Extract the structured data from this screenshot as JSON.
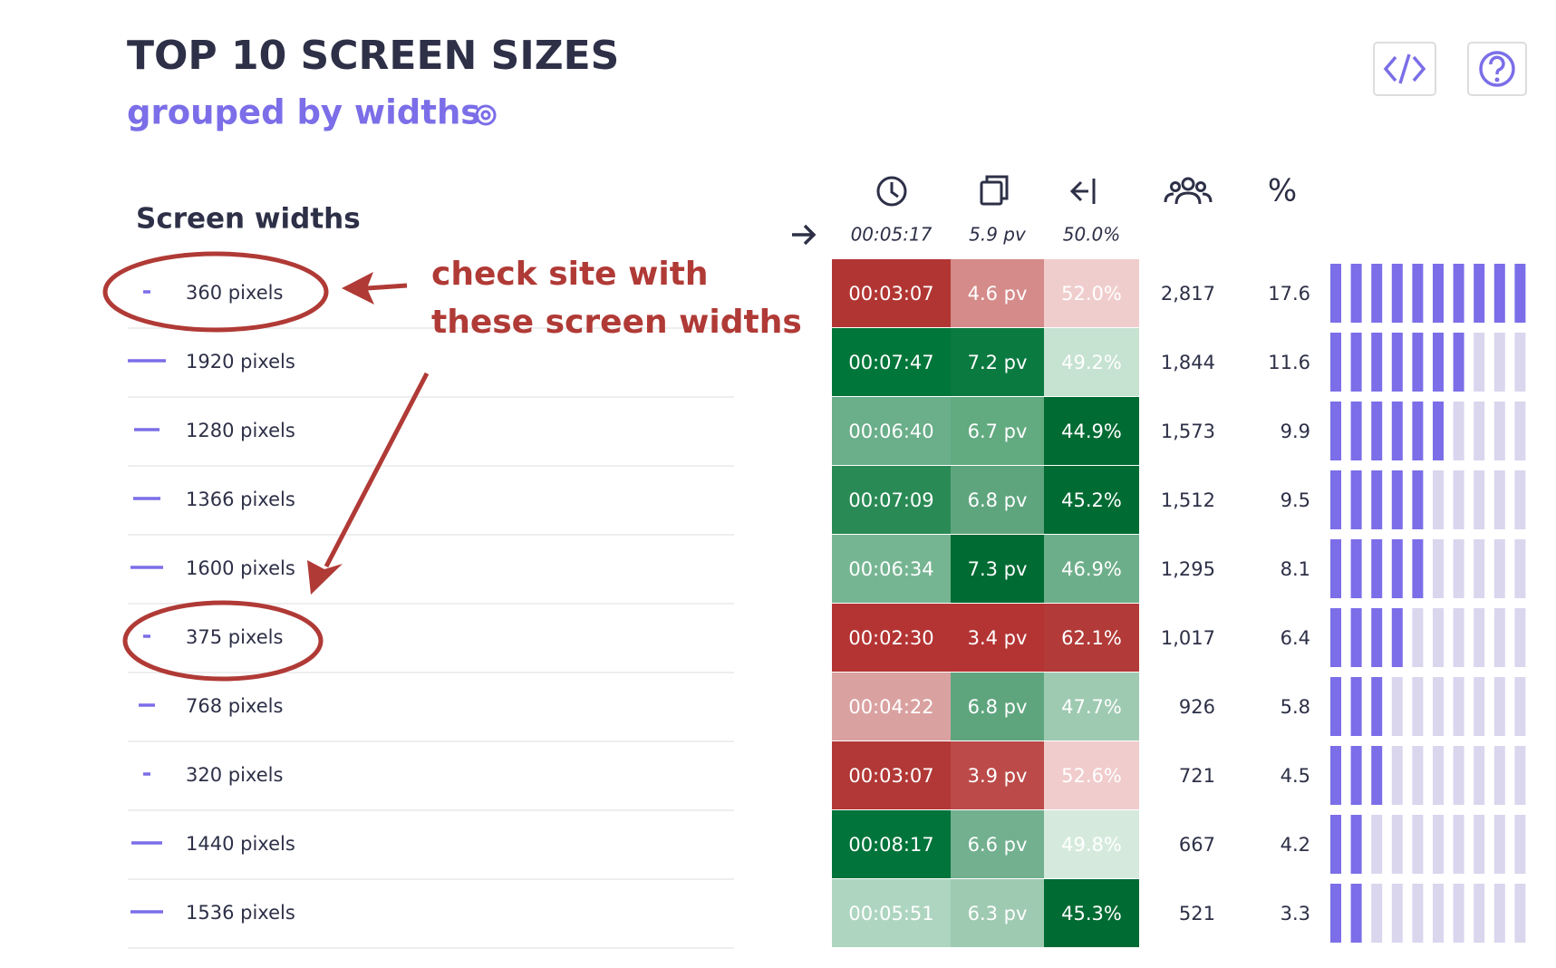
{
  "header": {
    "title": "TOP 10 SCREEN SIZES",
    "subtitle": "grouped by widths"
  },
  "table": {
    "heading": "Screen widths",
    "averages": [
      "00:05:17",
      "5.9 pv",
      "50.0%"
    ],
    "columns": {
      "percent_symbol": "%"
    },
    "rows": [
      {
        "label": "360 pixels",
        "cells": [
          {
            "text": "00:03:07",
            "bg": "#b13633"
          },
          {
            "text": "4.6 pv",
            "bg": "#d48b89"
          },
          {
            "text": "52.0%",
            "bg": "#f0cdcd"
          }
        ],
        "visitors": "2,817",
        "percent": 17.6
      },
      {
        "label": "1920 pixels",
        "cells": [
          {
            "text": "00:07:47",
            "bg": "#00763a"
          },
          {
            "text": "7.2 pv",
            "bg": "#0b7a40"
          },
          {
            "text": "49.2%",
            "bg": "#c6e2d1"
          }
        ],
        "visitors": "1,844",
        "percent": 11.6
      },
      {
        "label": "1280 pixels",
        "cells": [
          {
            "text": "00:06:40",
            "bg": "#6aae8a"
          },
          {
            "text": "6.7 pv",
            "bg": "#62aa80"
          },
          {
            "text": "44.9%",
            "bg": "#006b33"
          }
        ],
        "visitors": "1,573",
        "percent": 9.9
      },
      {
        "label": "1366 pixels",
        "cells": [
          {
            "text": "00:07:09",
            "bg": "#2a8a55"
          },
          {
            "text": "6.8 pv",
            "bg": "#5ea57e"
          },
          {
            "text": "45.2%",
            "bg": "#006b33"
          }
        ],
        "visitors": "1,512",
        "percent": 9.5
      },
      {
        "label": "1600 pixels",
        "cells": [
          {
            "text": "00:06:34",
            "bg": "#76b592"
          },
          {
            "text": "7.3 pv",
            "bg": "#006b33"
          },
          {
            "text": "46.9%",
            "bg": "#6dae8a"
          }
        ],
        "visitors": "1,295",
        "percent": 8.1
      },
      {
        "label": "375 pixels",
        "cells": [
          {
            "text": "00:02:30",
            "bg": "#b43434"
          },
          {
            "text": "3.4 pv",
            "bg": "#b43434"
          },
          {
            "text": "62.1%",
            "bg": "#b23a38"
          }
        ],
        "visitors": "1,017",
        "percent": 6.4
      },
      {
        "label": "768 pixels",
        "cells": [
          {
            "text": "00:04:22",
            "bg": "#d9a1a0"
          },
          {
            "text": "6.8 pv",
            "bg": "#5ea57e"
          },
          {
            "text": "47.7%",
            "bg": "#9ecab1"
          }
        ],
        "visitors": "926",
        "percent": 5.8
      },
      {
        "label": "320 pixels",
        "cells": [
          {
            "text": "00:03:07",
            "bg": "#b13836"
          },
          {
            "text": "3.9 pv",
            "bg": "#bb4a48"
          },
          {
            "text": "52.6%",
            "bg": "#f0cccc"
          }
        ],
        "visitors": "721",
        "percent": 4.5
      },
      {
        "label": "1440 pixels",
        "cells": [
          {
            "text": "00:08:17",
            "bg": "#00743a"
          },
          {
            "text": "6.6 pv",
            "bg": "#72b08f"
          },
          {
            "text": "49.8%",
            "bg": "#d5eadd"
          }
        ],
        "visitors": "667",
        "percent": 4.2
      },
      {
        "label": "1536 pixels",
        "cells": [
          {
            "text": "00:05:51",
            "bg": "#add5c0"
          },
          {
            "text": "6.3 pv",
            "bg": "#9ecab1"
          },
          {
            "text": "45.3%",
            "bg": "#006b33"
          }
        ],
        "visitors": "521",
        "percent": 3.3
      }
    ]
  },
  "annotation": {
    "lines": [
      "check site with",
      "these screen widths"
    ]
  }
}
